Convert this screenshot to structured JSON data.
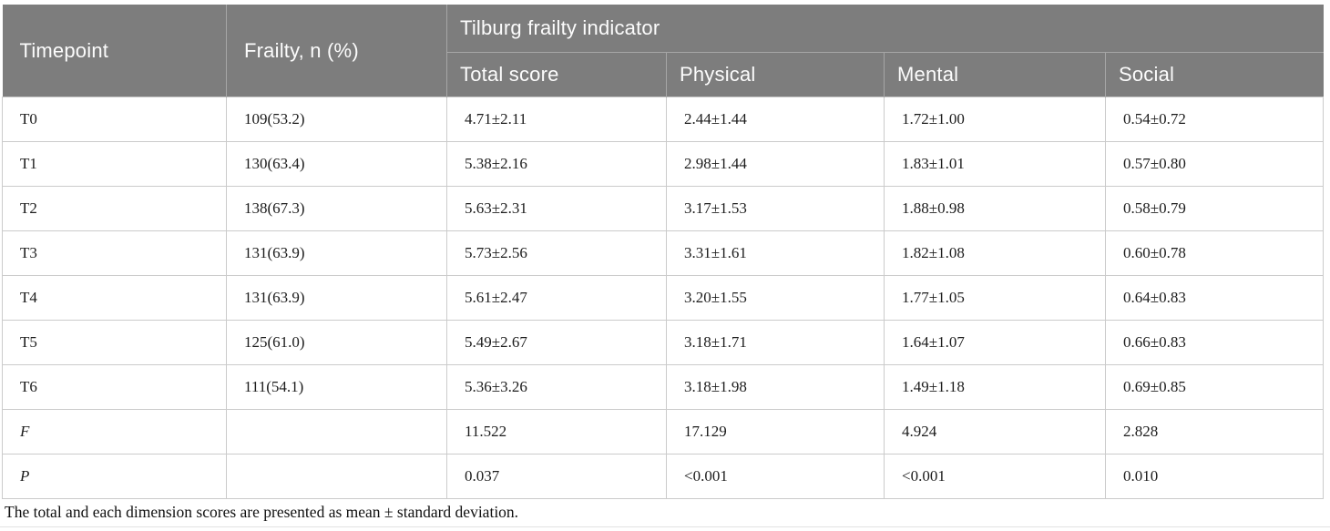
{
  "colors": {
    "header_bg": "#7d7d7d",
    "header_text": "#fcfcfc",
    "header_divider": "#a6a6a6",
    "body_border": "#cbcbcb",
    "body_text": "#1c1c1c",
    "bottom_rule": "#e2e2e2"
  },
  "table": {
    "header": {
      "timepoint": "Timepoint",
      "frailty": "Frailty, n (%)",
      "group": "Tilburg frailty indicator",
      "subcolumns": [
        "Total score",
        "Physical",
        "Mental",
        "Social"
      ]
    },
    "rows": [
      {
        "cells": [
          "T0",
          "109(53.2)",
          "4.71±2.11",
          "2.44±1.44",
          "1.72±1.00",
          "0.54±0.72"
        ]
      },
      {
        "cells": [
          "T1",
          "130(63.4)",
          "5.38±2.16",
          "2.98±1.44",
          "1.83±1.01",
          "0.57±0.80"
        ]
      },
      {
        "cells": [
          "T2",
          "138(67.3)",
          "5.63±2.31",
          "3.17±1.53",
          "1.88±0.98",
          "0.58±0.79"
        ]
      },
      {
        "cells": [
          "T3",
          "131(63.9)",
          "5.73±2.56",
          "3.31±1.61",
          "1.82±1.08",
          "0.60±0.78"
        ]
      },
      {
        "cells": [
          "T4",
          "131(63.9)",
          "5.61±2.47",
          "3.20±1.55",
          "1.77±1.05",
          "0.64±0.83"
        ]
      },
      {
        "cells": [
          "T5",
          "125(61.0)",
          "5.49±2.67",
          "3.18±1.71",
          "1.64±1.07",
          "0.66±0.83"
        ]
      },
      {
        "cells": [
          "T6",
          "111(54.1)",
          "5.36±3.26",
          "3.18±1.98",
          "1.49±1.18",
          "0.69±0.85"
        ]
      },
      {
        "cells": [
          "F",
          "",
          "11.522",
          "17.129",
          "4.924",
          "2.828"
        ]
      },
      {
        "cells": [
          "P",
          "",
          "0.037",
          "<0.001",
          "<0.001",
          "0.010"
        ]
      }
    ],
    "footnote": "The total and each dimension scores are presented as mean ± standard deviation."
  }
}
